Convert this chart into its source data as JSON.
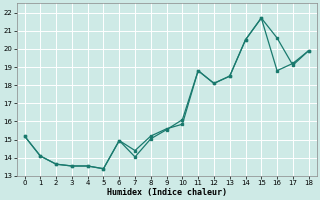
{
  "xlabel": "Humidex (Indice chaleur)",
  "background_color": "#ceeae6",
  "grid_color": "#b8d8d4",
  "line_color": "#1a7a6e",
  "xlim": [
    -0.5,
    18.5
  ],
  "ylim": [
    13.0,
    22.5
  ],
  "yticks": [
    13,
    14,
    15,
    16,
    17,
    18,
    19,
    20,
    21,
    22
  ],
  "xticks": [
    0,
    1,
    2,
    3,
    4,
    5,
    6,
    7,
    8,
    9,
    10,
    11,
    12,
    13,
    14,
    15,
    16,
    17,
    18
  ],
  "series1_x": [
    0,
    1,
    2,
    3,
    4,
    5,
    6,
    7,
    8,
    9,
    10,
    11,
    12,
    13,
    14,
    15,
    16,
    17,
    18
  ],
  "series1_y": [
    15.2,
    14.1,
    13.65,
    13.55,
    13.55,
    13.4,
    14.95,
    14.4,
    15.2,
    15.6,
    15.85,
    18.8,
    18.1,
    18.5,
    20.5,
    21.7,
    20.6,
    19.1,
    19.9
  ],
  "series2_x": [
    0,
    1,
    2,
    3,
    4,
    5,
    6,
    7,
    8,
    9,
    10,
    11,
    12,
    13,
    14,
    15,
    16,
    17,
    18
  ],
  "series2_y": [
    15.2,
    14.1,
    13.65,
    13.55,
    13.55,
    13.4,
    14.95,
    14.05,
    15.05,
    15.55,
    16.1,
    18.8,
    18.1,
    18.5,
    20.5,
    21.7,
    18.8,
    19.2,
    19.9
  ]
}
